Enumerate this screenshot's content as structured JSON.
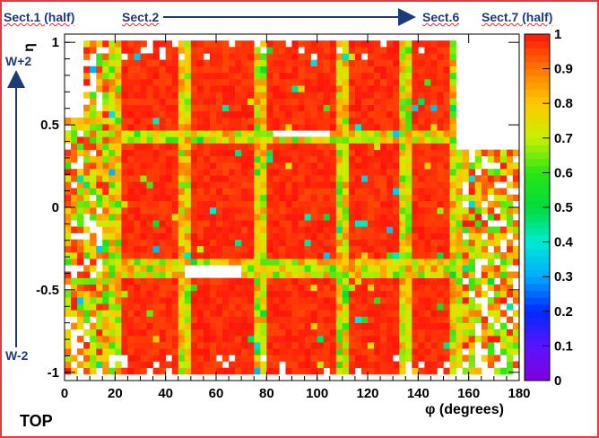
{
  "annotations": {
    "sect1": "Sect.1 (half)",
    "sect2": "Sect.2",
    "sect6": "Sect.6",
    "sect7": "Sect.7 (half)",
    "w_plus": "W+2",
    "w_minus": "W-2",
    "top": "TOP"
  },
  "colors": {
    "frame": "#e8383d",
    "annotation_text": "#1f3a78",
    "arrow": "#1f3a78"
  },
  "chart_data": {
    "type": "heatmap",
    "title": "",
    "xlabel": "φ (degrees)",
    "ylabel": "η",
    "xlim": [
      0,
      180
    ],
    "ylim": [
      -1.05,
      1.05
    ],
    "zlim": [
      0,
      1
    ],
    "x_ticks": [
      "0",
      "20",
      "40",
      "60",
      "80",
      "100",
      "120",
      "140",
      "160",
      "180"
    ],
    "y_ticks": [
      "-1",
      "-0.5",
      "0",
      "0.5",
      "1"
    ],
    "colorbar_ticks": [
      "0",
      "0.1",
      "0.2",
      "0.3",
      "0.4",
      "0.5",
      "0.6",
      "0.7",
      "0.8",
      "0.9",
      "1"
    ],
    "bins": {
      "nx": 72,
      "ny": 54
    },
    "typical_values": {
      "chamber_interior": 1.0,
      "chamber_boundary": 0.75,
      "edge_sectors": 0.6,
      "empty_regions": null
    },
    "empty_regions": [
      {
        "phi": [
          0,
          7
        ],
        "eta": [
          0.55,
          1.05
        ]
      },
      {
        "phi": [
          155,
          180
        ],
        "eta": [
          0.35,
          1.05
        ]
      },
      {
        "phi": [
          82,
          104
        ],
        "eta": [
          0.42,
          0.47
        ]
      },
      {
        "phi": [
          48,
          70
        ],
        "eta": [
          -0.42,
          -0.35
        ]
      }
    ],
    "grid": false,
    "colormap": "rainbow (violet → red)"
  }
}
